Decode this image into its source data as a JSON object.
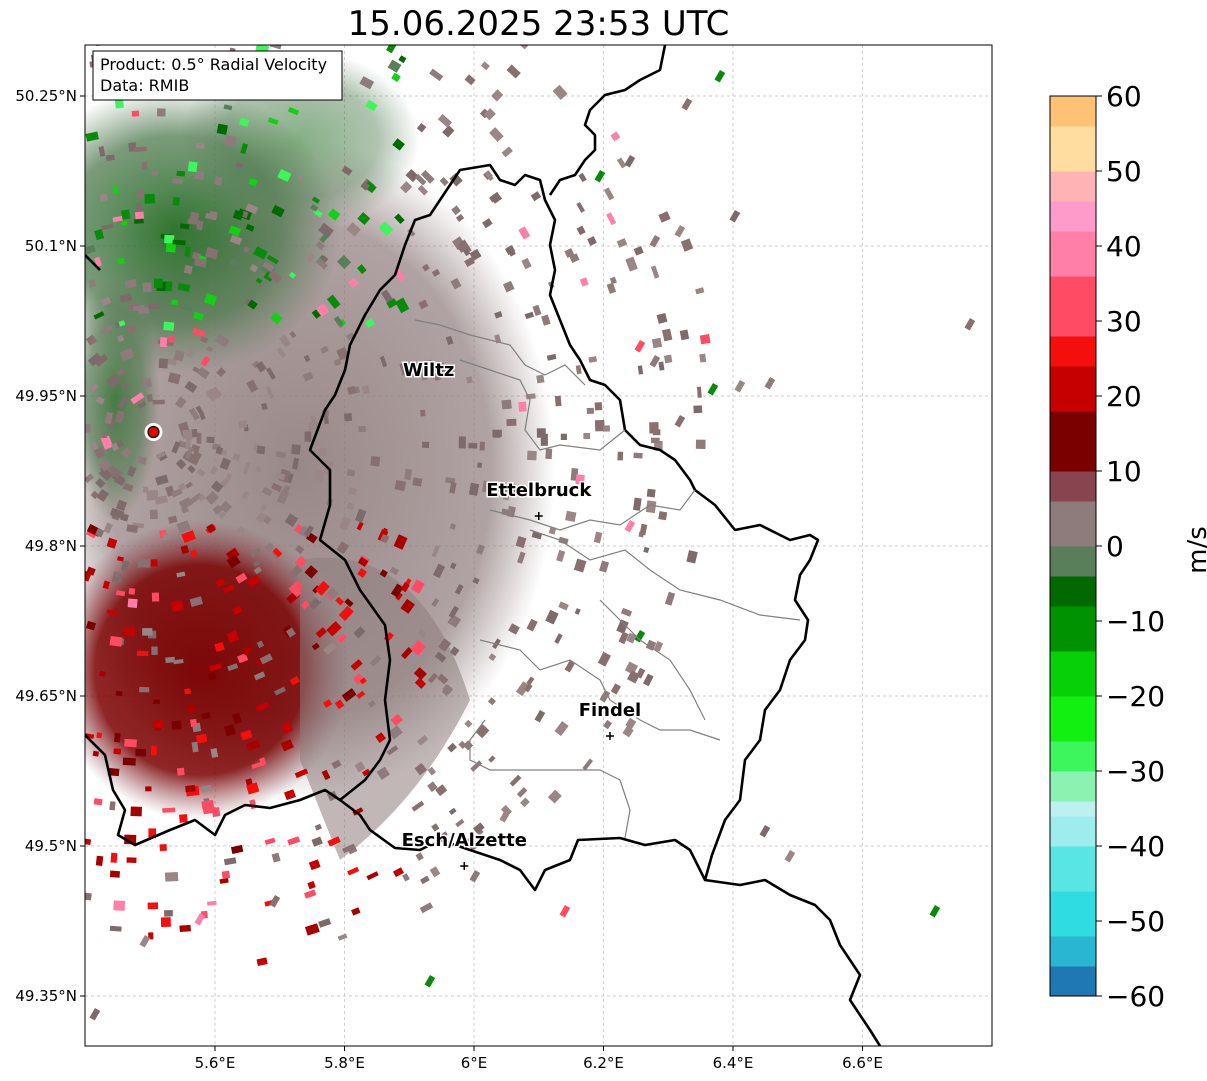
{
  "title": "15.06.2025 23:53 UTC",
  "info_box": {
    "line1": "Product: 0.5° Radial Velocity",
    "line2": "Data: RMIB"
  },
  "map": {
    "lon_range": [
      5.4,
      6.8
    ],
    "lat_range": [
      49.3,
      50.3
    ],
    "x_ticks": [
      "5.6°E",
      "5.8°E",
      "6°E",
      "6.2°E",
      "6.4°E",
      "6.6°E"
    ],
    "x_tick_values": [
      5.6,
      5.8,
      6.0,
      6.2,
      6.4,
      6.6
    ],
    "y_ticks": [
      "50.25°N",
      "50.1°N",
      "49.95°N",
      "49.8°N",
      "49.65°N",
      "49.5°N",
      "49.35°N"
    ],
    "y_tick_values": [
      50.25,
      50.1,
      49.95,
      49.8,
      49.65,
      49.5,
      49.35
    ],
    "grid": true,
    "radar_site": {
      "lon": 5.505,
      "lat": 49.914
    },
    "cities": [
      {
        "name": "Wiltz",
        "lon": 5.93,
        "lat": 49.97,
        "marker": false
      },
      {
        "name": "Ettelbruck",
        "lon": 6.1,
        "lat": 49.85,
        "marker": true
      },
      {
        "name": "Findel",
        "lon": 6.21,
        "lat": 49.63,
        "marker": true
      },
      {
        "name": "Esch/Alzette",
        "lon": 5.985,
        "lat": 49.5,
        "marker": true
      }
    ]
  },
  "colorbar": {
    "label": "m/s",
    "ticks": [
      "60",
      "50",
      "40",
      "30",
      "20",
      "10",
      "0",
      "−10",
      "−20",
      "−30",
      "−40",
      "−50",
      "−60"
    ],
    "tick_values": [
      60,
      50,
      40,
      30,
      20,
      10,
      0,
      -10,
      -20,
      -30,
      -40,
      -50,
      -60
    ],
    "range": [
      -60,
      60
    ],
    "colors": [
      {
        "v": -60,
        "c": "#1f77b4"
      },
      {
        "v": -56,
        "c": "#29b6d2"
      },
      {
        "v": -52,
        "c": "#2fdde0"
      },
      {
        "v": -46,
        "c": "#58e5e3"
      },
      {
        "v": -40,
        "c": "#9deded"
      },
      {
        "v": -36,
        "c": "#bff0f0"
      },
      {
        "v": -34,
        "c": "#8cf2b2"
      },
      {
        "v": -30,
        "c": "#3df55c"
      },
      {
        "v": -26,
        "c": "#12f012"
      },
      {
        "v": -20,
        "c": "#08d008"
      },
      {
        "v": -14,
        "c": "#009200"
      },
      {
        "v": -8,
        "c": "#006a00"
      },
      {
        "v": -4,
        "c": "#5a7d5a"
      },
      {
        "v": 0,
        "c": "#8e7b7b"
      },
      {
        "v": 6,
        "c": "#884550"
      },
      {
        "v": 10,
        "c": "#7a0000"
      },
      {
        "v": 18,
        "c": "#c60000"
      },
      {
        "v": 24,
        "c": "#f50e0e"
      },
      {
        "v": 28,
        "c": "#ff4b63"
      },
      {
        "v": 36,
        "c": "#ff7fa9"
      },
      {
        "v": 42,
        "c": "#ff9bcb"
      },
      {
        "v": 46,
        "c": "#ffb3b5"
      },
      {
        "v": 50,
        "c": "#ffdca0"
      },
      {
        "v": 56,
        "c": "#ffc275"
      },
      {
        "v": 60,
        "c": "#ff9b55"
      }
    ]
  }
}
